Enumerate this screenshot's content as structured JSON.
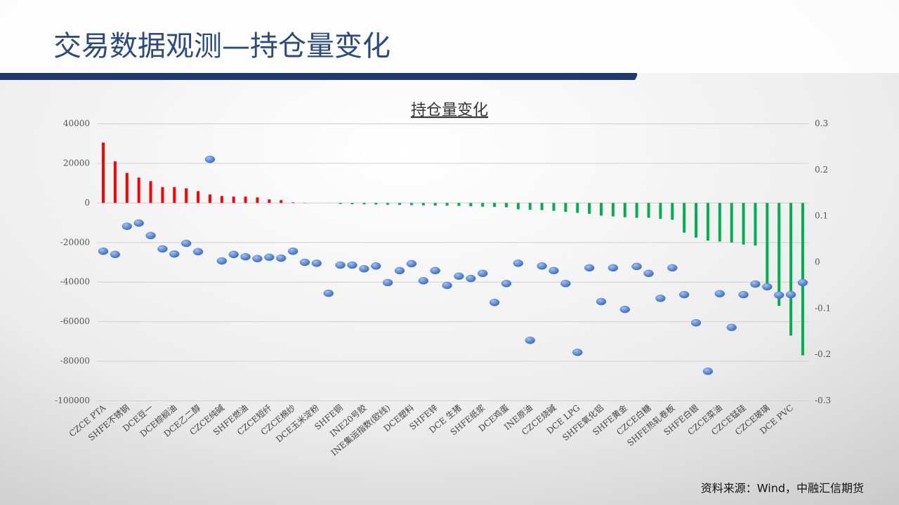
{
  "header": {
    "title": "交易数据观测—持仓量变化"
  },
  "chart_data": {
    "type": "bar-scatter",
    "title": "持仓量变化",
    "categories": [
      "CZCE PTA",
      null,
      "SHFE不锈钢",
      null,
      "DCE豆一",
      null,
      "DCE棕榈油",
      null,
      "DCE乙二醇",
      null,
      "CZCE纯碱",
      null,
      "SHFE燃油",
      null,
      "CZCE短纤",
      null,
      "CZCE棉纱",
      null,
      "DCE玉米淀粉",
      null,
      "SHFE铜",
      null,
      "INE20号胶",
      null,
      "INE集运指数(欧线)",
      null,
      "DCE塑料",
      null,
      "SHFE锌",
      null,
      "DCE 生猪",
      null,
      "SHFE纸浆",
      null,
      "DCE鸡蛋",
      null,
      "INE原油",
      null,
      "CZCE烧碱",
      null,
      "DCE LPG",
      null,
      "SHFE氧化铝",
      null,
      "SHFE黄金",
      null,
      "CZCE白糖",
      null,
      "SHFE热轧卷板",
      null,
      "SHFE白银",
      null,
      "CZCE菜油",
      null,
      "CZCE锰硅",
      null,
      "CZCE玻璃",
      null,
      "DCE PVC",
      null
    ],
    "series": [
      {
        "kind": "bar",
        "color": "#ff0000",
        "negative_color": "#00b050",
        "values": [
          30500,
          21000,
          15200,
          12800,
          11000,
          8000,
          8000,
          7400,
          6000,
          4300,
          3500,
          3200,
          3200,
          2800,
          1800,
          1400,
          300,
          100,
          0,
          -50,
          -500,
          -600,
          -700,
          -800,
          -900,
          -1000,
          -1100,
          -1200,
          -1300,
          -1400,
          -1500,
          -1700,
          -1900,
          -2000,
          -2200,
          -3200,
          -3400,
          -3600,
          -4000,
          -4500,
          -5000,
          -5500,
          -6400,
          -6800,
          -7200,
          -7500,
          -7500,
          -8000,
          -8500,
          -15000,
          -17500,
          -19000,
          -19500,
          -20000,
          -21000,
          -21500,
          -42000,
          -52000,
          -67000,
          -77000
        ]
      },
      {
        "kind": "scatter",
        "axis": "y2",
        "color": "#4a7fd4",
        "values": [
          0.024,
          0.017,
          0.078,
          0.085,
          0.058,
          0.029,
          0.018,
          0.041,
          0.023,
          0.223,
          0.003,
          0.017,
          0.012,
          0.008,
          0.011,
          0.009,
          0.024,
          0.0,
          -0.002,
          -0.067,
          -0.006,
          -0.006,
          -0.014,
          -0.008,
          -0.044,
          -0.018,
          -0.003,
          -0.04,
          -0.018,
          -0.05,
          -0.03,
          -0.035,
          -0.024,
          -0.087,
          -0.046,
          -0.002,
          -0.169,
          -0.008,
          -0.018,
          -0.046,
          -0.195,
          -0.012,
          -0.085,
          -0.012,
          -0.102,
          -0.009,
          -0.024,
          -0.078,
          -0.012,
          -0.07,
          -0.131,
          -0.236,
          -0.068,
          -0.141,
          -0.07,
          -0.047,
          -0.053,
          -0.071,
          -0.07,
          -0.044
        ]
      }
    ],
    "ylim": [
      -100000,
      40000
    ],
    "yticks": [
      40000,
      20000,
      0,
      -20000,
      -40000,
      -60000,
      -80000,
      -100000
    ],
    "y2lim": [
      -0.3,
      0.3
    ],
    "y2ticks": [
      0.3,
      0.2,
      0.1,
      0,
      -0.1,
      -0.2,
      -0.3
    ],
    "grid": true
  },
  "footer": {
    "source": "资料来源：Wind，中融汇信期货"
  }
}
